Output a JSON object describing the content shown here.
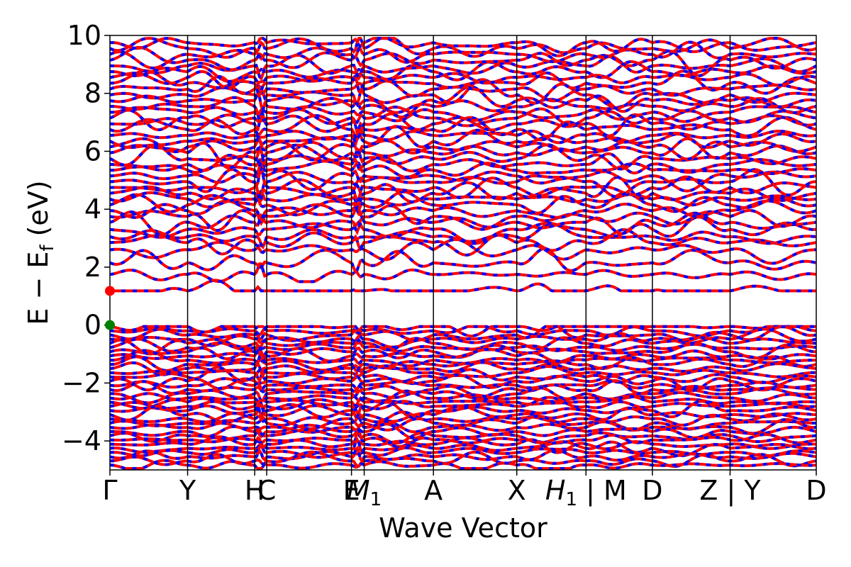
{
  "chart_data": {
    "type": "line",
    "xlabel": "Wave Vector",
    "ylabel_main": "E − E",
    "ylabel_sub": "f",
    "ylabel_unit": " (eV)",
    "ylim": [
      -5,
      10
    ],
    "yticks": [
      -4,
      -2,
      0,
      2,
      4,
      6,
      8,
      10
    ],
    "ytick_labels": [
      "−4",
      "−2",
      "0",
      "2",
      "4",
      "6",
      "8",
      "10"
    ],
    "kpath": [
      {
        "label": "Γ",
        "pos": 0.0
      },
      {
        "label": "Y",
        "pos": 0.11
      },
      {
        "label": "H",
        "pos": 0.205
      },
      {
        "label": "C",
        "pos": 0.222
      },
      {
        "label": "E",
        "pos": 0.342
      },
      {
        "label": "M",
        "sub": "1",
        "pos": 0.36
      },
      {
        "label": "A",
        "pos": 0.458
      },
      {
        "label": "X",
        "pos": 0.576
      },
      {
        "label": "H",
        "sub": "1",
        "pos": 0.674,
        "suffix": " | M"
      },
      {
        "label": "D",
        "pos": 0.768
      },
      {
        "label": "Z",
        "pos": 0.878,
        "suffix": " | Y"
      },
      {
        "label": "D",
        "pos": 1.0
      }
    ],
    "series": [
      {
        "color": "#ff0000",
        "style": "solid"
      },
      {
        "color": "#0000ff",
        "style": "dashed"
      }
    ],
    "highlight_points": [
      {
        "x": 0.0,
        "y": 1.18,
        "color": "#ff0000"
      },
      {
        "x": 0.0,
        "y": 0.0,
        "color": "#008000"
      }
    ],
    "conduction_band_min": 1.18,
    "valence_band_max": 0.0,
    "grid": false,
    "legend": "none"
  }
}
